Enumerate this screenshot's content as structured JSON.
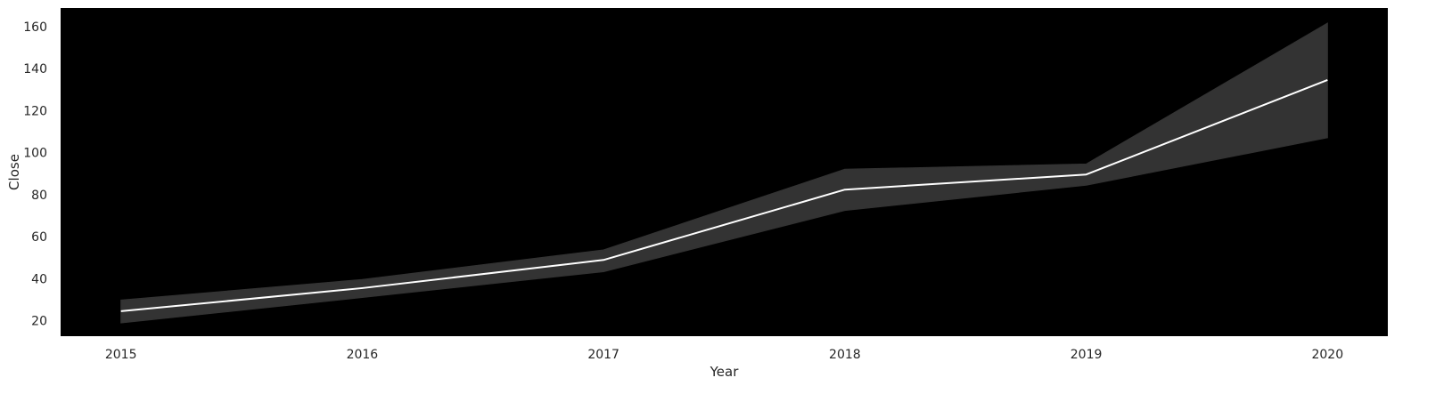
{
  "chart_data": {
    "type": "line",
    "title": "",
    "xlabel": "Year",
    "ylabel": "Close",
    "x": [
      2015,
      2016,
      2017,
      2018,
      2019,
      2020
    ],
    "x_tick_labels": [
      "2015",
      "2016",
      "2017",
      "2018",
      "2019",
      "2020"
    ],
    "series": [
      {
        "values": [
          24.5,
          35.5,
          48.9,
          82.4,
          89.6,
          134.6
        ],
        "ci_lower": [
          18.9,
          31.0,
          43.3,
          72.5,
          84.5,
          107.1
        ],
        "ci_upper": [
          29.8,
          39.6,
          53.7,
          92.1,
          94.6,
          161.7
        ],
        "color": "#ffffff",
        "band_color": "#333333"
      }
    ],
    "y_ticks": [
      20,
      40,
      60,
      80,
      100,
      120,
      140,
      160
    ],
    "y_tick_labels": [
      "20",
      "40",
      "60",
      "80",
      "100",
      "120",
      "140",
      "160"
    ],
    "xlim": [
      2014.75,
      2020.25
    ],
    "ylim": [
      12.6,
      168.9
    ],
    "grid": false,
    "legend": "none",
    "background_color": "#000000"
  }
}
